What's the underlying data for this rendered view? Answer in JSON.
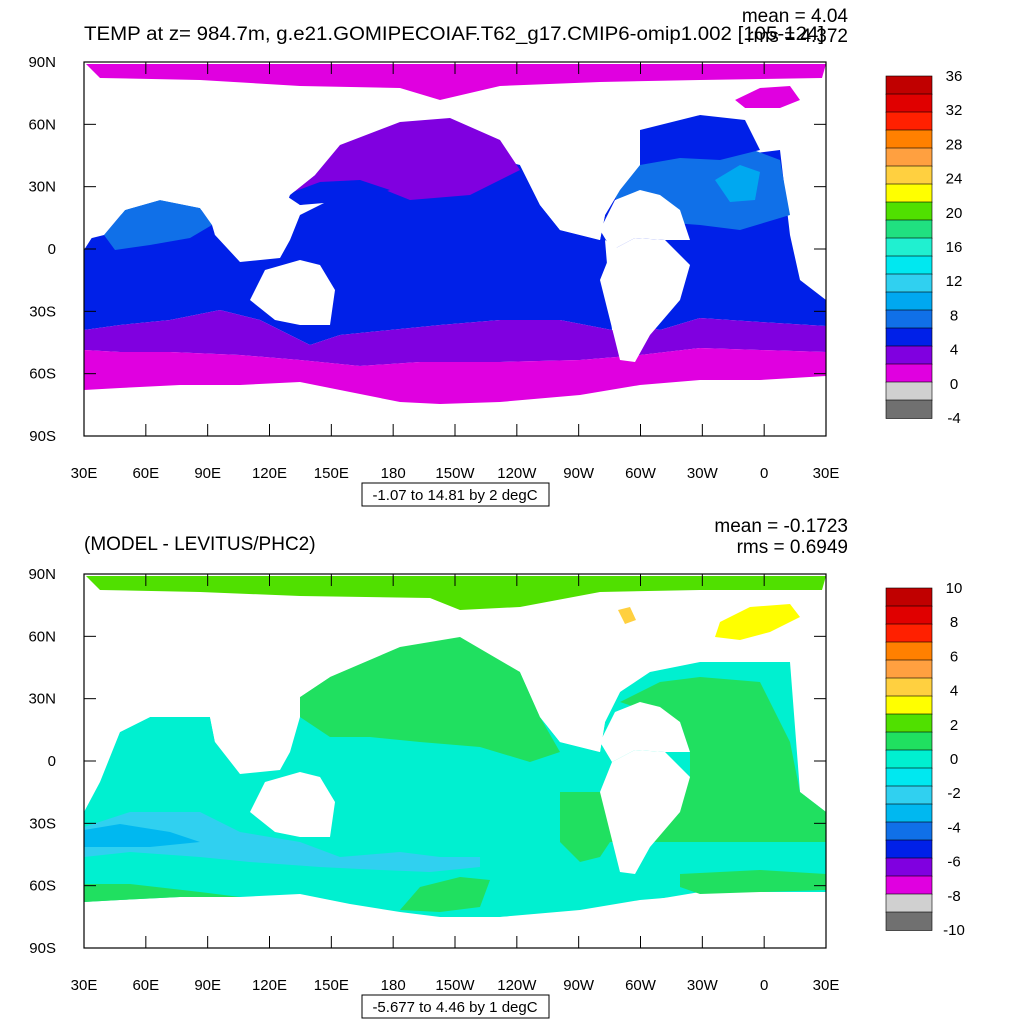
{
  "top": {
    "title": "TEMP at z= 984.7m, g.e21.GOMIPECOIAF.T62_g17.CMIP6-omip1.002 [105-124]",
    "mean_text": "mean = 4.04",
    "rms_text": "rms = 4.372",
    "range_text": "-1.07 to 14.81 by 2 degC",
    "lat_labels": [
      "90N",
      "60N",
      "30N",
      "0",
      "30S",
      "60S",
      "90S"
    ],
    "lon_labels": [
      "30E",
      "60E",
      "90E",
      "120E",
      "150E",
      "180",
      "150W",
      "120W",
      "90W",
      "60W",
      "30W",
      "0",
      "30E"
    ],
    "colorbar": {
      "labels": [
        "36",
        "32",
        "28",
        "24",
        "20",
        "16",
        "12",
        "8",
        "4",
        "0",
        "-4"
      ],
      "colors": [
        "#c00000",
        "#e00000",
        "#ff2000",
        "#ff8000",
        "#ffa040",
        "#ffd040",
        "#ffff00",
        "#50e000",
        "#20e080",
        "#20f0d0",
        "#00e8f0",
        "#30d0f0",
        "#00a8f0",
        "#1070e8",
        "#0020e8",
        "#8000e0",
        "#e000e0",
        "#d0d0d0",
        "#707070"
      ]
    }
  },
  "bottom": {
    "title": "(MODEL - LEVITUS/PHC2)",
    "mean_text": "mean = -0.1723",
    "rms_text": "rms = 0.6949",
    "range_text": "-5.677 to 4.46 by 1 degC",
    "lat_labels": [
      "90N",
      "60N",
      "30N",
      "0",
      "30S",
      "60S",
      "90S"
    ],
    "lon_labels": [
      "30E",
      "60E",
      "90E",
      "120E",
      "150E",
      "180",
      "150W",
      "120W",
      "90W",
      "60W",
      "30W",
      "0",
      "30E"
    ],
    "colorbar": {
      "labels": [
        "10",
        "8",
        "6",
        "4",
        "2",
        "0",
        "-2",
        "-4",
        "-6",
        "-8",
        "-10"
      ],
      "colors": [
        "#c00000",
        "#e00000",
        "#ff2000",
        "#ff8000",
        "#ffa040",
        "#ffd040",
        "#ffff00",
        "#50e000",
        "#20e060",
        "#00f0d0",
        "#00e8f0",
        "#30d0f0",
        "#00b8f0",
        "#1070e8",
        "#0020e8",
        "#8000e0",
        "#e000e0",
        "#d0d0d0",
        "#707070"
      ]
    }
  }
}
